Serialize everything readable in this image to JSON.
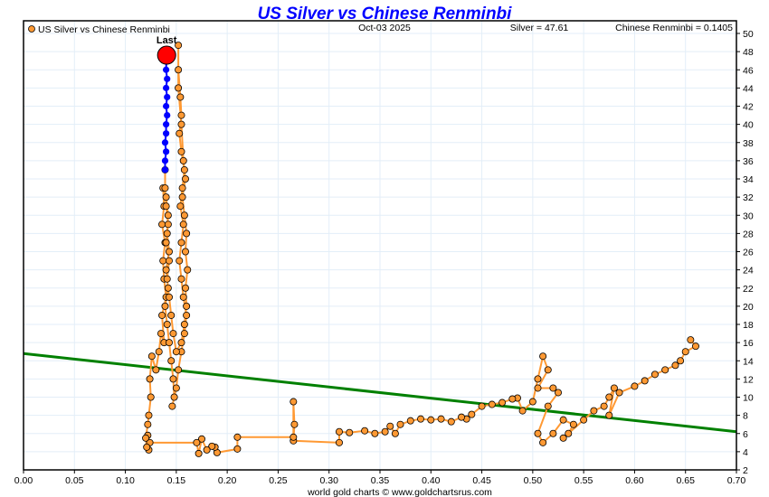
{
  "chart_data": {
    "type": "scatter",
    "title": "US Silver vs Chinese Renminbi",
    "legend": {
      "label": "US Silver vs Chinese Renminbi",
      "placement": "top-left"
    },
    "header": {
      "date": "Oct-03  2025",
      "silver": "Silver = 47.61",
      "renminbi": "Chinese Renminbi = 0.1405"
    },
    "footer": "world gold charts © www.goldchartsrus.com",
    "xlabel": "",
    "ylabel": "",
    "xlim": [
      0,
      0.7
    ],
    "ylim": [
      2,
      51.4
    ],
    "x_ticks": [
      "0.00",
      "0.05",
      "0.10",
      "0.15",
      "0.20",
      "0.25",
      "0.30",
      "0.35",
      "0.40",
      "0.45",
      "0.50",
      "0.55",
      "0.60",
      "0.65",
      "0.70"
    ],
    "y_ticks": [
      "2",
      "4",
      "6",
      "8",
      "10",
      "12",
      "14",
      "16",
      "18",
      "20",
      "22",
      "24",
      "26",
      "28",
      "30",
      "32",
      "34",
      "36",
      "38",
      "40",
      "42",
      "44",
      "46",
      "48",
      "50"
    ],
    "grid": true,
    "last_label": "Last",
    "last_point": [
      0.1405,
      47.61
    ],
    "trendline": [
      [
        0,
        14.8
      ],
      [
        0.7,
        6.2
      ]
    ],
    "colors": {
      "title": "#0000ff",
      "history": "#ff9933",
      "recent": "#0000ff",
      "last": "#ff0000",
      "trend": "#008000",
      "grid": "#e3eef8",
      "line": "#ff9933"
    },
    "history": [
      [
        0.655,
        16.3
      ],
      [
        0.66,
        15.6
      ],
      [
        0.65,
        15
      ],
      [
        0.645,
        14
      ],
      [
        0.64,
        13.5
      ],
      [
        0.63,
        13
      ],
      [
        0.62,
        12.5
      ],
      [
        0.61,
        11.8
      ],
      [
        0.6,
        11.2
      ],
      [
        0.585,
        10.5
      ],
      [
        0.575,
        8
      ],
      [
        0.58,
        11
      ],
      [
        0.575,
        10
      ],
      [
        0.57,
        9
      ],
      [
        0.56,
        8.5
      ],
      [
        0.55,
        7.5
      ],
      [
        0.53,
        5.5
      ],
      [
        0.535,
        6
      ],
      [
        0.54,
        7
      ],
      [
        0.53,
        7.5
      ],
      [
        0.52,
        6
      ],
      [
        0.51,
        5
      ],
      [
        0.505,
        6
      ],
      [
        0.515,
        9
      ],
      [
        0.525,
        10.5
      ],
      [
        0.52,
        11
      ],
      [
        0.505,
        11
      ],
      [
        0.515,
        13
      ],
      [
        0.51,
        14.5
      ],
      [
        0.505,
        12
      ],
      [
        0.5,
        9.5
      ],
      [
        0.49,
        8.5
      ],
      [
        0.485,
        9.9
      ],
      [
        0.48,
        9.8
      ],
      [
        0.47,
        9.4
      ],
      [
        0.46,
        9.2
      ],
      [
        0.45,
        9.0
      ],
      [
        0.44,
        8.1
      ],
      [
        0.435,
        7.6
      ],
      [
        0.43,
        7.8
      ],
      [
        0.42,
        7.3
      ],
      [
        0.41,
        7.6
      ],
      [
        0.4,
        7.5
      ],
      [
        0.39,
        7.6
      ],
      [
        0.38,
        7.4
      ],
      [
        0.37,
        7.0
      ],
      [
        0.365,
        6.0
      ],
      [
        0.36,
        6.8
      ],
      [
        0.355,
        6.2
      ],
      [
        0.345,
        6.0
      ],
      [
        0.335,
        6.3
      ],
      [
        0.32,
        6.1
      ],
      [
        0.31,
        6.2
      ],
      [
        0.31,
        5.0
      ],
      [
        0.265,
        5.2
      ],
      [
        0.266,
        7
      ],
      [
        0.265,
        9.5
      ],
      [
        0.265,
        5.6
      ],
      [
        0.21,
        5.6
      ],
      [
        0.21,
        4.3
      ],
      [
        0.19,
        3.9
      ],
      [
        0.188,
        4.5
      ],
      [
        0.185,
        4.6
      ],
      [
        0.18,
        4.2
      ],
      [
        0.175,
        5.4
      ],
      [
        0.172,
        3.8
      ],
      [
        0.17,
        5.0
      ],
      [
        0.124,
        5.0
      ],
      [
        0.122,
        5.8
      ],
      [
        0.123,
        4.2
      ],
      [
        0.121,
        4.5
      ],
      [
        0.12,
        5.5
      ],
      [
        0.122,
        7
      ],
      [
        0.123,
        8
      ],
      [
        0.125,
        10
      ],
      [
        0.124,
        12
      ],
      [
        0.126,
        14.5
      ],
      [
        0.13,
        13
      ],
      [
        0.133,
        15
      ],
      [
        0.135,
        17
      ],
      [
        0.138,
        16
      ],
      [
        0.136,
        19
      ],
      [
        0.14,
        21
      ],
      [
        0.138,
        23
      ],
      [
        0.137,
        25
      ],
      [
        0.139,
        27
      ],
      [
        0.136,
        29
      ],
      [
        0.138,
        31
      ],
      [
        0.137,
        33
      ],
      [
        0.14,
        32
      ],
      [
        0.142,
        30
      ],
      [
        0.141,
        28
      ],
      [
        0.143,
        26
      ],
      [
        0.14,
        24
      ],
      [
        0.142,
        22
      ],
      [
        0.139,
        20
      ],
      [
        0.141,
        18
      ],
      [
        0.143,
        16
      ],
      [
        0.145,
        14
      ],
      [
        0.147,
        12
      ],
      [
        0.148,
        10
      ],
      [
        0.146,
        9
      ],
      [
        0.15,
        11
      ],
      [
        0.152,
        13
      ],
      [
        0.155,
        15
      ],
      [
        0.158,
        17
      ],
      [
        0.16,
        19
      ],
      [
        0.157,
        21
      ],
      [
        0.155,
        23
      ],
      [
        0.153,
        25
      ],
      [
        0.155,
        27
      ],
      [
        0.157,
        29
      ],
      [
        0.154,
        31
      ],
      [
        0.156,
        33
      ],
      [
        0.158,
        35
      ],
      [
        0.155,
        37
      ],
      [
        0.153,
        39
      ],
      [
        0.155,
        41
      ],
      [
        0.154,
        43
      ],
      [
        0.152,
        46
      ],
      [
        0.152,
        48.7
      ],
      [
        0.152,
        44
      ],
      [
        0.155,
        40
      ],
      [
        0.157,
        36
      ],
      [
        0.159,
        34
      ],
      [
        0.156,
        32
      ],
      [
        0.158,
        30
      ],
      [
        0.16,
        28
      ],
      [
        0.159,
        26
      ],
      [
        0.161,
        24
      ],
      [
        0.159,
        22
      ],
      [
        0.16,
        20
      ],
      [
        0.158,
        18
      ],
      [
        0.155,
        16
      ],
      [
        0.15,
        15
      ],
      [
        0.147,
        17
      ],
      [
        0.145,
        19
      ],
      [
        0.143,
        21
      ],
      [
        0.141,
        23
      ],
      [
        0.143,
        25
      ],
      [
        0.14,
        27
      ],
      [
        0.142,
        29
      ],
      [
        0.14,
        31
      ],
      [
        0.139,
        33
      ],
      [
        0.139,
        35
      ]
    ],
    "recent": [
      [
        0.139,
        35
      ],
      [
        0.139,
        36
      ],
      [
        0.14,
        37
      ],
      [
        0.139,
        38
      ],
      [
        0.14,
        39
      ],
      [
        0.14,
        40
      ],
      [
        0.141,
        41
      ],
      [
        0.14,
        42
      ],
      [
        0.141,
        43
      ],
      [
        0.14,
        44
      ],
      [
        0.141,
        45
      ],
      [
        0.14,
        46
      ],
      [
        0.1405,
        47.61
      ]
    ]
  }
}
